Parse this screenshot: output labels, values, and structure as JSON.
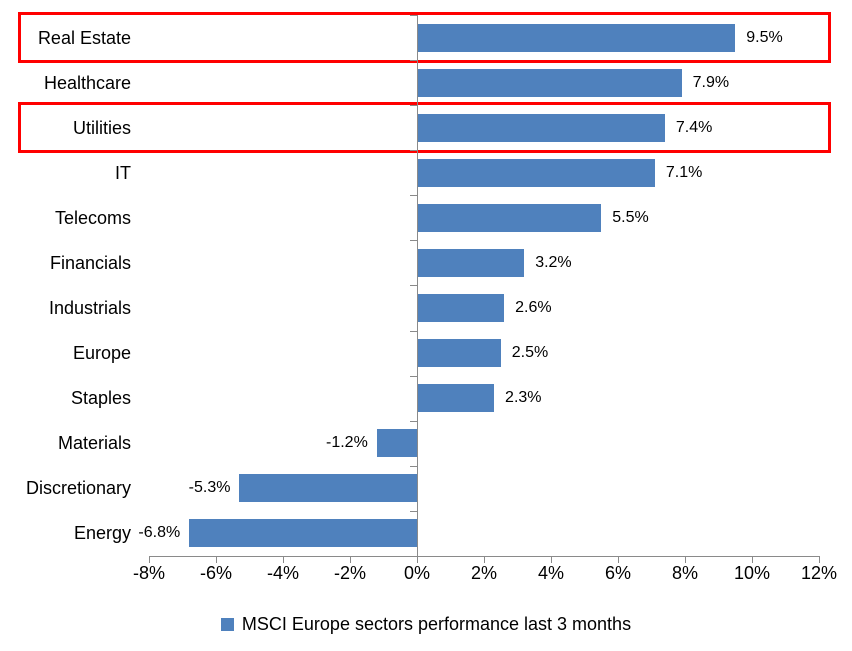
{
  "chart_data": {
    "type": "bar",
    "orientation": "horizontal",
    "title": "",
    "categories": [
      "Real Estate",
      "Healthcare",
      "Utilities",
      "IT",
      "Telecoms",
      "Financials",
      "Industrials",
      "Europe",
      "Staples",
      "Materials",
      "Discretionary",
      "Energy"
    ],
    "values": [
      9.5,
      7.9,
      7.4,
      7.1,
      5.5,
      3.2,
      2.6,
      2.5,
      2.3,
      -1.2,
      -5.3,
      -6.8
    ],
    "data_labels": [
      "9.5%",
      "7.9%",
      "7.4%",
      "7.1%",
      "5.5%",
      "3.2%",
      "2.6%",
      "2.5%",
      "2.3%",
      "-1.2%",
      "-5.3%",
      "-6.8%"
    ],
    "xlim": [
      -8,
      12
    ],
    "xtick_step": 2,
    "xtick_labels": [
      "-8%",
      "-6%",
      "-4%",
      "-2%",
      "0%",
      "2%",
      "4%",
      "6%",
      "8%",
      "10%",
      "12%"
    ],
    "grid": "off",
    "legend": "MSCI Europe sectors performance last 3 months",
    "legend_position": "bottom",
    "bar_color": "#4f81bd",
    "axis_color": "#8a8a8a",
    "text_color": "#000000",
    "highlight_color": "#ff0000",
    "highlighted_categories": [
      "Real Estate",
      "Utilities"
    ]
  }
}
